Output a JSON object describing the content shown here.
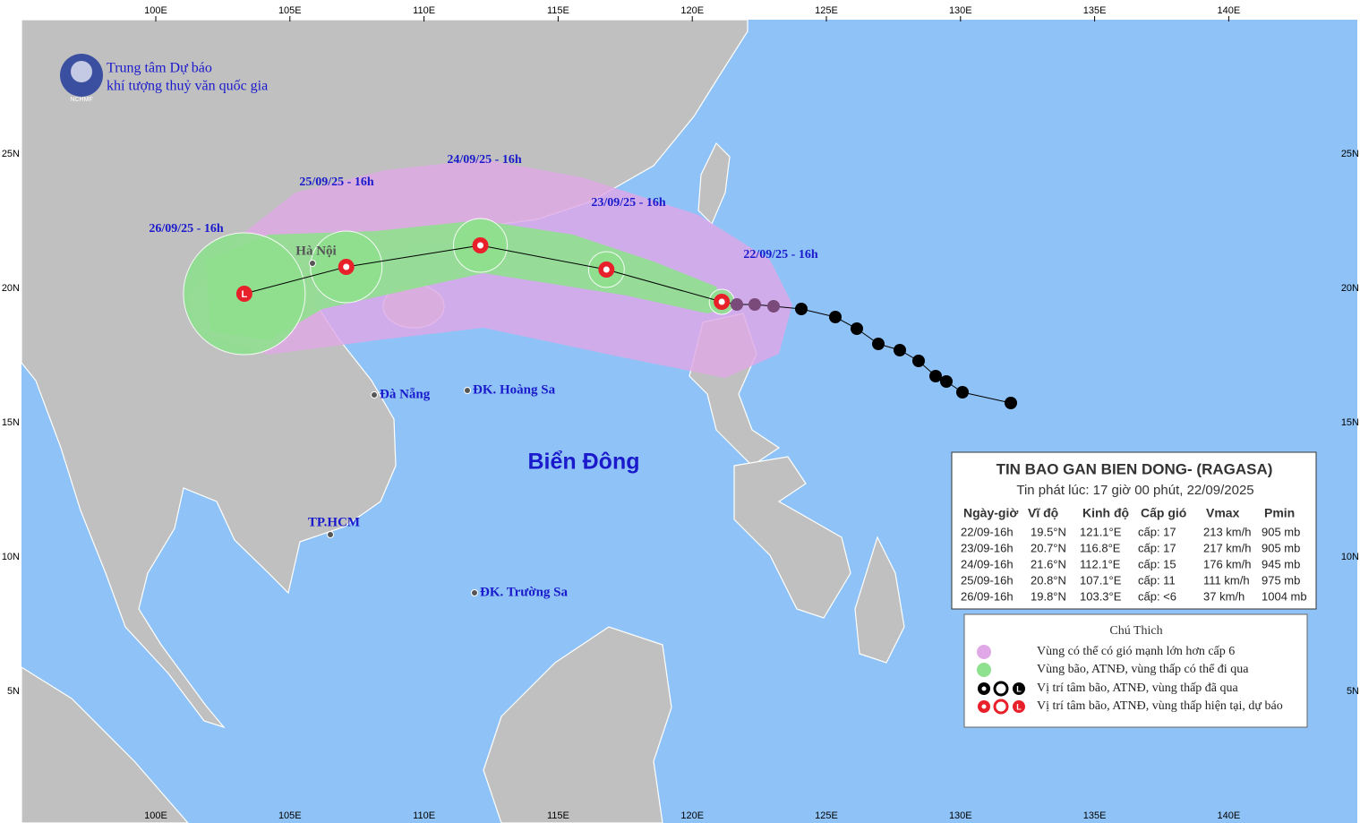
{
  "header": {
    "org_line1": "Trung tâm Dự báo",
    "org_line2": "khí tượng thuỷ văn quốc gia",
    "logo_text": "NCHMF"
  },
  "axes": {
    "lon_labels": [
      "100E",
      "105E",
      "110E",
      "115E",
      "120E",
      "125E",
      "130E",
      "135E",
      "140E"
    ],
    "lat_labels": [
      "25N",
      "20N",
      "15N",
      "10N",
      "5N"
    ]
  },
  "map_labels": {
    "sea": "Biển Đông",
    "places": [
      "Hà Nội",
      "Đà Nẵng",
      "ĐK. Hoàng Sa",
      "TP.HCM",
      "ĐK. Trường Sa"
    ]
  },
  "forecast_times": [
    "22/09/25 - 16h",
    "23/09/25 - 16h",
    "24/09/25 - 16h",
    "25/09/25 - 16h",
    "26/09/25 - 16h"
  ],
  "low_symbol": "L",
  "bulletin": {
    "title": "TIN BAO GAN BIEN DONG- (RAGASA)",
    "issued": "Tin phát lúc: 17 giờ 00 phút, 22/09/2025",
    "columns": [
      "Ngày-giờ",
      "Vĩ độ",
      "Kinh độ",
      "Cấp gió",
      "Vmax",
      "Pmin"
    ],
    "rows": [
      [
        "22/09-16h",
        "19.5°N",
        "121.1°E",
        "cấp: 17",
        "213 km/h",
        "905 mb"
      ],
      [
        "23/09-16h",
        "20.7°N",
        "116.8°E",
        "cấp: 17",
        "217 km/h",
        "905 mb"
      ],
      [
        "24/09-16h",
        "21.6°N",
        "112.1°E",
        "cấp: 15",
        "176 km/h",
        "945 mb"
      ],
      [
        "25/09-16h",
        "20.8°N",
        "107.1°E",
        "cấp: 11",
        "111 km/h",
        "975 mb"
      ],
      [
        "26/09-16h",
        "19.8°N",
        "103.3°E",
        "cấp: <6",
        "37 km/h",
        "1004 mb"
      ]
    ]
  },
  "legend": {
    "title": "Chú Thich",
    "items": [
      "Vùng có thể có gió mạnh lớn hơn cấp 6",
      "Vùng bão, ATNĐ, vùng thấp có thể đi qua",
      "Vị trí tâm bão, ATNĐ, vùng thấp đã qua",
      "Vị trí tâm bão, ATNĐ, vùng thấp hiện tại, dự báo"
    ]
  }
}
